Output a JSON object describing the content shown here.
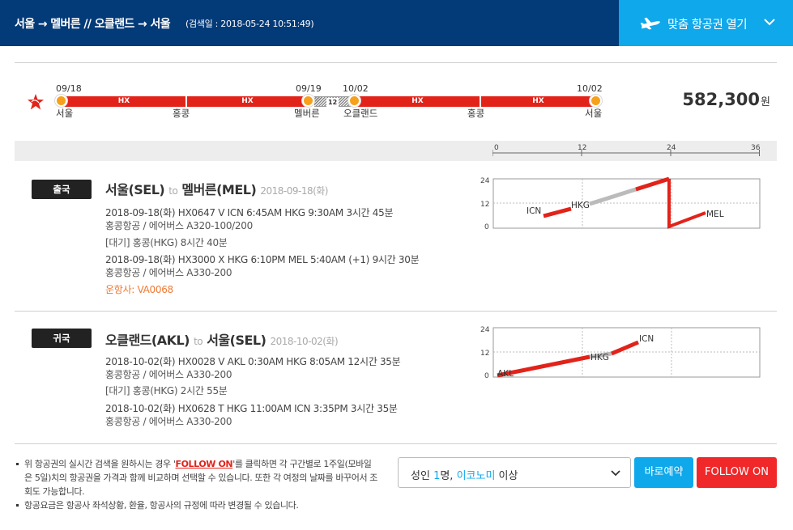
{
  "header": {
    "route": "서울 → 멜버른 // 오클랜드 → 서울",
    "searched": "(검색일 : 2018-05-24 10:51:49)",
    "open_button": "맞춤 항공권 열기",
    "plane_icon": "airplane-icon",
    "chevron_icon": "chevron-down-icon"
  },
  "itinerary": {
    "airline_logo": "hongkong-airlines-logo",
    "dates": [
      "09/18",
      "09/19",
      "10/02",
      "10/02"
    ],
    "cities": [
      "서울",
      "홍콩",
      "멜버른",
      "오클랜드",
      "홍콩",
      "서울"
    ],
    "segment_labels": [
      "HX",
      "HX",
      "HX",
      "HX"
    ],
    "stay_days": "12",
    "price": "582,300",
    "price_unit": "원"
  },
  "scale": {
    "ticks": [
      "0",
      "12",
      "24",
      "36"
    ]
  },
  "legs": [
    {
      "badge": "출국",
      "from": "서울(SEL)",
      "to_word": "to",
      "to": "멜버른(MEL)",
      "date": "2018-09-18(화)",
      "lines": [
        "2018-09-18(화)    HX0647    V    ICN 6:45AM HKG 9:30AM    3시간 45분",
        "홍콩항공 / 에어버스 A320-100/200",
        "[대기] 홍콩(HKG)    8시간 40분",
        "2018-09-18(화)    HX3000    X    HKG 6:10PM MEL 5:40AM (+1)    9시간 30분",
        "홍콩항공 / 에어버스 A330-200",
        "운항사: VA0068"
      ],
      "chart": {
        "y_ticks": [
          "24",
          "12",
          "0"
        ],
        "labels": [
          "ICN",
          "HKG",
          "MEL"
        ]
      }
    },
    {
      "badge": "귀국",
      "from": "오클랜드(AKL)",
      "to_word": "to",
      "to": "서울(SEL)",
      "date": "2018-10-02(화)",
      "lines": [
        "2018-10-02(화)    HX0028    V    AKL 0:30AM HKG 8:05AM    12시간 35분",
        "홍콩항공 / 에어버스 A330-200",
        "[대기] 홍콩(HKG)    2시간 55분",
        "2018-10-02(화)    HX0628    T    HKG 11:00AM ICN 3:35PM    3시간 35분",
        "홍콩항공 / 에어버스 A330-200"
      ],
      "chart": {
        "y_ticks": [
          "24",
          "12",
          "0"
        ],
        "labels": [
          "AKL",
          "HKG",
          "ICN"
        ]
      }
    }
  ],
  "notes": {
    "note1_a": "위 항공권의 실시간 검색을 원하시는 경우 '",
    "note1_link": "FOLLOW ON",
    "note1_b": "'를 클릭하면 각 구간별로 1주일(모바일은 5일)치의 항공권을 가격과 함께 비교하며 선택할 수 있습니다. 또한 각 여정의 날짜를 바꾸어서 조회도 가능합니다.",
    "note2": "항공요금은 항공사 좌석상황, 환율, 항공사의 규정에 따라 변경될 수 있습니다."
  },
  "controls": {
    "select_prefix": "성인 ",
    "select_count": "1",
    "select_mid": "명, ",
    "select_class": "이코노미",
    "select_suffix": " 이상",
    "book_button": "바로예약",
    "follow_button": "FOLLOW ON"
  },
  "colors": {
    "header_bg": "#033a78",
    "accent_blue": "#0ea8eb",
    "flight_red": "#e2231a",
    "node_orange": "#f7a01b",
    "follow_red": "#f0282a"
  }
}
